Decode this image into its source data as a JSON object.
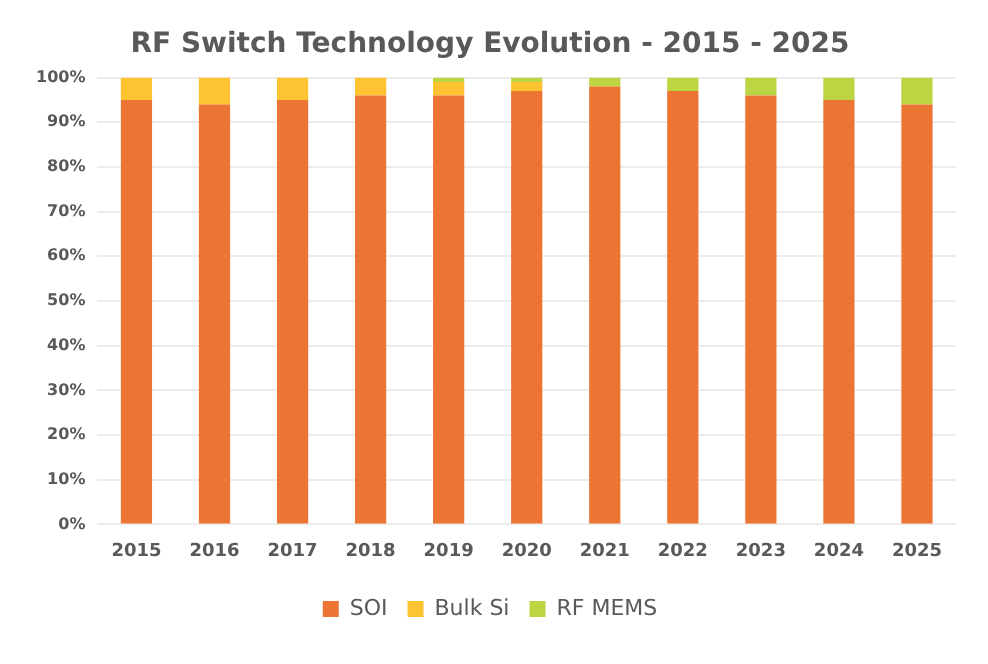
{
  "chart_data": {
    "type": "bar",
    "title": "RF Switch Technology Evolution - 2015 - 2025",
    "stacked": true,
    "categories": [
      "2015",
      "2016",
      "2017",
      "2018",
      "2019",
      "2020",
      "2021",
      "2022",
      "2023",
      "2024",
      "2025"
    ],
    "series": [
      {
        "name": "SOI",
        "color": "#ed7533",
        "values": [
          95,
          94,
          95,
          96,
          96,
          97,
          98,
          97,
          96,
          95,
          94
        ]
      },
      {
        "name": "Bulk Si",
        "color": "#fdc331",
        "values": [
          5,
          6,
          5,
          4,
          3,
          2,
          0,
          0,
          0,
          0,
          0
        ]
      },
      {
        "name": "RF MEMS",
        "color": "#bcd643",
        "values": [
          0,
          0,
          0,
          0,
          1,
          1,
          2,
          3,
          4,
          5,
          6
        ]
      }
    ],
    "ylim": [
      0,
      100
    ],
    "yticks": [
      {
        "value": 0,
        "label": "0%"
      },
      {
        "value": 10,
        "label": "10%"
      },
      {
        "value": 20,
        "label": "20%"
      },
      {
        "value": 30,
        "label": "30%"
      },
      {
        "value": 40,
        "label": "40%"
      },
      {
        "value": 50,
        "label": "50%"
      },
      {
        "value": 60,
        "label": "60%"
      },
      {
        "value": 70,
        "label": "70%"
      },
      {
        "value": 80,
        "label": "80%"
      },
      {
        "value": 90,
        "label": "90%"
      },
      {
        "value": 100,
        "label": "100%"
      }
    ],
    "grid": "y",
    "legend": "bottom"
  }
}
